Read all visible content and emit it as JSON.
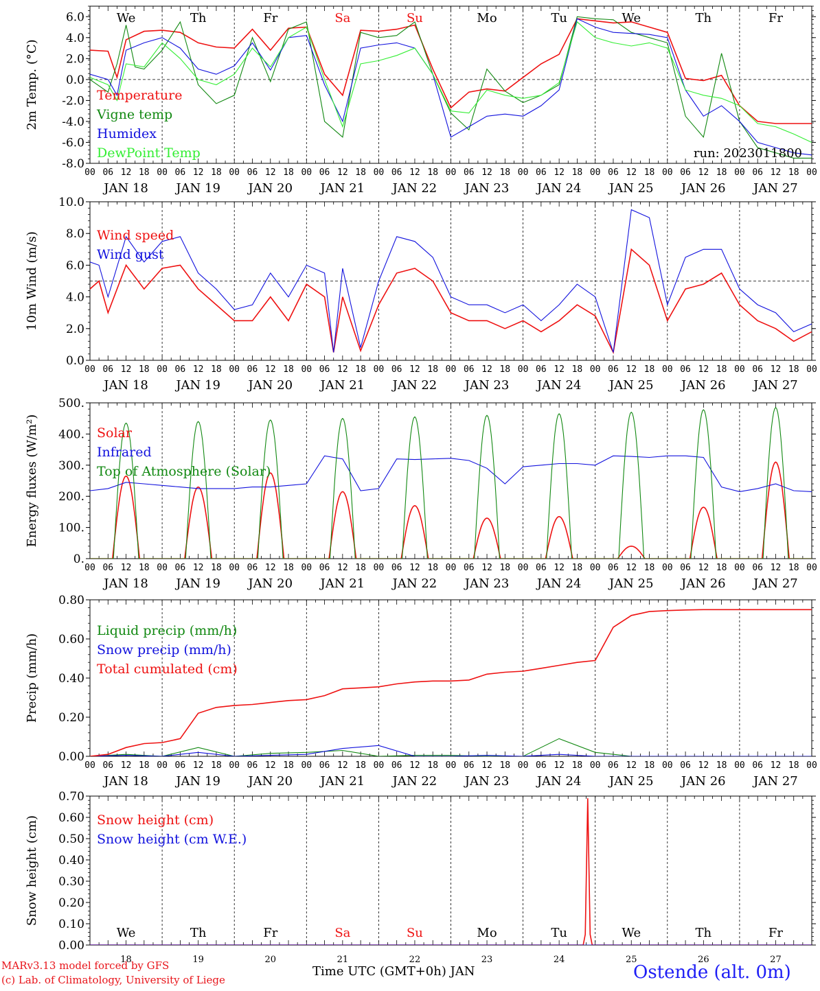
{
  "days_of_week": [
    "We",
    "Th",
    "Fr",
    "Sa",
    "Su",
    "Mo",
    "Tu",
    "We",
    "Th",
    "Fr"
  ],
  "weekend_days": [
    "Sa",
    "Su"
  ],
  "date_labels": [
    "JAN 18",
    "JAN 19",
    "JAN 20",
    "JAN 21",
    "JAN 22",
    "JAN 23",
    "JAN 24",
    "JAN 25",
    "JAN 26",
    "JAN 27"
  ],
  "day_numbers": [
    "18",
    "19",
    "20",
    "21",
    "22",
    "23",
    "24",
    "25",
    "26",
    "27"
  ],
  "hour_ticks": [
    "00",
    "06",
    "12",
    "18"
  ],
  "final_hour_tick": "00",
  "colors": {
    "red": "#ee1111",
    "green": "#118811",
    "blue": "#1111dd",
    "lightgreen": "#33ee33"
  },
  "footer": {
    "credit_line1": "MARv3.13 model forced by GFS",
    "credit_line2": "(c) Lab. of Climatology, University of Liege",
    "x_axis_title": "Time UTC (GMT+0h) JAN",
    "station": "Ostende (alt. 0m)"
  },
  "chart_data": [
    {
      "type": "line",
      "ylabel": "2m Temp. (°C)",
      "ylim": [
        -8,
        7
      ],
      "yticks": [
        "6.0",
        "4.0",
        "2.0",
        "0.0",
        "-2.0",
        "-4.0",
        "-6.0",
        "-8.0"
      ],
      "reference_line": 0,
      "run_label": "run: 2023011800",
      "x_unit": "hours since 18 JAN 00 UTC",
      "series": [
        {
          "name": "Temperature",
          "color": "red",
          "x": [
            0,
            6,
            9,
            12,
            18,
            24,
            30,
            36,
            42,
            48,
            54,
            60,
            66,
            72,
            78,
            84,
            90,
            96,
            102,
            108,
            114,
            120,
            126,
            132,
            138,
            144,
            150,
            156,
            162,
            168,
            174,
            180,
            186,
            192,
            198,
            204,
            210,
            216,
            222,
            228,
            234,
            240
          ],
          "y": [
            2.8,
            2.7,
            0.2,
            3.8,
            4.6,
            4.7,
            4.5,
            3.5,
            3.1,
            3.0,
            4.8,
            2.8,
            4.9,
            5.0,
            0.5,
            -1.5,
            4.7,
            4.6,
            4.8,
            5.2,
            1.0,
            -2.7,
            -1.2,
            -0.9,
            -1.1,
            0.2,
            1.5,
            2.4,
            5.8,
            5.6,
            5.4,
            5.5,
            5.0,
            4.5,
            0.1,
            -0.1,
            0.4,
            -2.5,
            -4.0,
            -4.2,
            -4.2,
            -4.2
          ]
        },
        {
          "name": "Vigne temp",
          "color": "green",
          "x": [
            0,
            6,
            9,
            12,
            15,
            18,
            24,
            30,
            36,
            42,
            48,
            54,
            60,
            66,
            72,
            78,
            84,
            90,
            96,
            102,
            108,
            114,
            120,
            126,
            132,
            138,
            144,
            150,
            156,
            162,
            168,
            174,
            180,
            186,
            192,
            198,
            204,
            210,
            216,
            222,
            228,
            234,
            240
          ],
          "y": [
            0.0,
            -1.2,
            1.5,
            5.2,
            1.2,
            1.0,
            2.8,
            5.5,
            -0.5,
            -2.3,
            -1.5,
            4.0,
            -0.2,
            4.8,
            5.5,
            -4.0,
            -5.5,
            4.5,
            4.0,
            4.2,
            5.5,
            0.5,
            -3.2,
            -4.8,
            1.0,
            -1.1,
            -2.2,
            -1.5,
            -0.5,
            6.0,
            5.8,
            5.7,
            4.5,
            4.0,
            3.5,
            -3.5,
            -5.5,
            2.5,
            -4.0,
            -6.5,
            -7.0,
            -7.5,
            -7.5
          ]
        },
        {
          "name": "Humidex",
          "color": "blue",
          "x": [
            0,
            6,
            9,
            12,
            18,
            24,
            30,
            36,
            42,
            48,
            54,
            60,
            66,
            72,
            78,
            84,
            90,
            96,
            102,
            108,
            114,
            120,
            126,
            132,
            138,
            144,
            150,
            156,
            162,
            168,
            174,
            180,
            186,
            192,
            198,
            204,
            210,
            216,
            222,
            228,
            234,
            240
          ],
          "y": [
            0.5,
            0.0,
            -1.5,
            2.8,
            3.5,
            4.0,
            3.0,
            1.0,
            0.5,
            1.3,
            3.5,
            0.9,
            4.0,
            4.2,
            -0.5,
            -4.0,
            3.0,
            3.3,
            3.5,
            3.0,
            0.5,
            -5.5,
            -4.5,
            -3.5,
            -3.3,
            -3.5,
            -2.5,
            -1.0,
            5.8,
            5.0,
            4.5,
            4.4,
            4.3,
            4.0,
            -1.0,
            -3.5,
            -2.5,
            -4.0,
            -6.0,
            -6.5,
            -7.0,
            -7.2
          ]
        },
        {
          "name": "DewPoint Temp",
          "color": "lightgreen",
          "x": [
            0,
            6,
            9,
            12,
            18,
            24,
            30,
            36,
            42,
            48,
            54,
            60,
            66,
            72,
            78,
            84,
            90,
            96,
            102,
            108,
            114,
            120,
            126,
            132,
            138,
            144,
            150,
            156,
            162,
            168,
            174,
            180,
            186,
            192,
            198,
            204,
            210,
            216,
            222,
            228,
            234,
            240
          ],
          "y": [
            0.2,
            -0.5,
            -2.0,
            1.5,
            1.2,
            3.5,
            2.0,
            0.0,
            -0.5,
            0.5,
            3.0,
            1.2,
            4.0,
            5.0,
            0.0,
            -4.5,
            1.5,
            1.8,
            2.3,
            3.0,
            0.5,
            -3.0,
            -3.2,
            -1.0,
            -1.5,
            -1.8,
            -1.5,
            -0.3,
            5.5,
            4.0,
            3.5,
            3.2,
            3.5,
            3.0,
            -1.0,
            -1.5,
            -1.8,
            -2.5,
            -4.2,
            -4.5,
            -5.2,
            -6.0
          ]
        }
      ]
    },
    {
      "type": "line",
      "ylabel": "10m Wind (m/s)",
      "ylim": [
        0,
        10
      ],
      "yticks": [
        "10.0",
        "8.0",
        "6.0",
        "4.0",
        "2.0",
        "0.0"
      ],
      "reference_line": 5,
      "x_unit": "hours since 18 JAN 00 UTC",
      "series": [
        {
          "name": "Wind speed",
          "color": "red",
          "x": [
            0,
            3,
            6,
            12,
            18,
            24,
            30,
            36,
            42,
            48,
            54,
            60,
            66,
            72,
            78,
            81,
            84,
            90,
            96,
            102,
            108,
            114,
            120,
            126,
            132,
            138,
            144,
            150,
            156,
            162,
            168,
            174,
            180,
            186,
            192,
            198,
            204,
            210,
            216,
            222,
            228,
            234,
            240
          ],
          "y": [
            4.5,
            5.0,
            3.0,
            6.0,
            4.5,
            5.8,
            6.0,
            4.5,
            3.5,
            2.5,
            2.5,
            4.0,
            2.5,
            4.8,
            4.0,
            0.5,
            4.0,
            0.6,
            3.5,
            5.5,
            5.8,
            5.0,
            3.0,
            2.5,
            2.5,
            2.0,
            2.5,
            1.8,
            2.5,
            3.5,
            2.8,
            0.5,
            7.0,
            6.0,
            2.5,
            4.5,
            4.8,
            5.5,
            3.5,
            2.5,
            2.0,
            1.2,
            1.8
          ]
        },
        {
          "name": "Wind gust",
          "color": "blue",
          "x": [
            0,
            3,
            6,
            12,
            18,
            24,
            30,
            36,
            42,
            48,
            54,
            60,
            66,
            72,
            78,
            81,
            84,
            90,
            96,
            102,
            108,
            114,
            120,
            126,
            132,
            138,
            144,
            150,
            156,
            162,
            168,
            174,
            180,
            186,
            192,
            198,
            204,
            210,
            216,
            222,
            228,
            234,
            240
          ],
          "y": [
            6.2,
            6.0,
            4.0,
            7.8,
            6.2,
            7.5,
            7.8,
            5.5,
            4.5,
            3.2,
            3.5,
            5.5,
            4.0,
            6.0,
            5.5,
            0.5,
            5.8,
            0.8,
            5.0,
            7.8,
            7.5,
            6.5,
            4.0,
            3.5,
            3.5,
            3.0,
            3.5,
            2.5,
            3.5,
            4.8,
            4.0,
            0.5,
            9.5,
            9.0,
            3.5,
            6.5,
            7.0,
            7.0,
            4.5,
            3.5,
            3.0,
            1.8,
            2.3
          ]
        }
      ]
    },
    {
      "type": "line",
      "ylabel": "Energy fluxes (W/m²)",
      "ylim": [
        0,
        500
      ],
      "yticks": [
        "500.",
        "400.",
        "300.",
        "200.",
        "100.",
        "0."
      ],
      "x_unit": "hours since 18 JAN 00 UTC",
      "series": [
        {
          "name": "Solar",
          "color": "red",
          "peak_hour": 12,
          "half_width_hours": 4.5,
          "day_peaks": [
            265,
            230,
            275,
            215,
            170,
            130,
            135,
            40,
            165,
            310
          ]
        },
        {
          "name": "Infrared",
          "color": "blue",
          "x": [
            0,
            6,
            12,
            18,
            24,
            30,
            36,
            42,
            48,
            54,
            60,
            66,
            72,
            78,
            84,
            90,
            96,
            102,
            108,
            114,
            120,
            126,
            132,
            138,
            144,
            150,
            156,
            162,
            168,
            174,
            180,
            186,
            192,
            198,
            204,
            210,
            216,
            222,
            228,
            234,
            240
          ],
          "y": [
            218,
            225,
            245,
            240,
            235,
            230,
            225,
            225,
            225,
            230,
            230,
            235,
            240,
            330,
            320,
            218,
            225,
            320,
            318,
            320,
            322,
            315,
            290,
            240,
            295,
            300,
            305,
            305,
            300,
            330,
            328,
            325,
            330,
            330,
            325,
            230,
            215,
            225,
            240,
            218,
            215
          ]
        },
        {
          "name": "Top of Atmosphere (Solar)",
          "color": "green",
          "peak_hour": 12,
          "half_width_hours": 4.2,
          "day_peaks": [
            435,
            440,
            445,
            450,
            455,
            460,
            465,
            470,
            478,
            485
          ]
        }
      ]
    },
    {
      "type": "line",
      "ylabel": "Precip (mm/h)",
      "ylim": [
        0,
        0.8
      ],
      "yticks": [
        "0.80",
        "0.60",
        "0.40",
        "0.20",
        "0.00"
      ],
      "x_unit": "hours since 18 JAN 00 UTC",
      "series": [
        {
          "name": "Liquid precip (mm/h)",
          "color": "green",
          "x": [
            0,
            12,
            24,
            36,
            48,
            60,
            72,
            84,
            96,
            108,
            120,
            132,
            144,
            156,
            168,
            180,
            192,
            204,
            216,
            228,
            240
          ],
          "y": [
            0.0,
            0.01,
            0.0,
            0.045,
            0.0,
            0.015,
            0.02,
            0.03,
            0.0,
            0.005,
            0.005,
            0.0,
            0.0,
            0.09,
            0.02,
            0.0,
            0.0,
            0.0,
            0.0,
            0.0,
            0.0
          ]
        },
        {
          "name": "Snow precip (mm/h)",
          "color": "blue",
          "x": [
            0,
            12,
            24,
            36,
            48,
            60,
            72,
            84,
            96,
            108,
            120,
            132,
            144,
            156,
            168,
            180,
            192,
            204,
            216,
            228,
            240
          ],
          "y": [
            0.0,
            0.005,
            0.0,
            0.02,
            0.0,
            0.005,
            0.01,
            0.04,
            0.055,
            0.0,
            0.0,
            0.005,
            0.0,
            0.01,
            0.0,
            0.0,
            0.0,
            0.0,
            0.0,
            0.0,
            0.0
          ]
        },
        {
          "name": "Total cumulated (cm)",
          "color": "red",
          "x": [
            0,
            6,
            12,
            18,
            24,
            30,
            36,
            42,
            48,
            54,
            60,
            66,
            72,
            78,
            84,
            90,
            96,
            102,
            108,
            114,
            120,
            126,
            132,
            138,
            144,
            150,
            156,
            162,
            168,
            174,
            180,
            186,
            192,
            198,
            204,
            210,
            216,
            222,
            228,
            234,
            240
          ],
          "y": [
            0.0,
            0.01,
            0.045,
            0.065,
            0.07,
            0.09,
            0.22,
            0.25,
            0.26,
            0.265,
            0.275,
            0.285,
            0.29,
            0.31,
            0.345,
            0.35,
            0.355,
            0.37,
            0.38,
            0.385,
            0.385,
            0.39,
            0.42,
            0.43,
            0.435,
            0.45,
            0.465,
            0.48,
            0.49,
            0.66,
            0.72,
            0.74,
            0.745,
            0.748,
            0.75,
            0.75,
            0.75,
            0.75,
            0.75,
            0.75,
            0.75
          ]
        }
      ]
    },
    {
      "type": "line",
      "ylabel": "Snow height (cm)",
      "ylim": [
        0,
        0.7
      ],
      "yticks": [
        "0.70",
        "0.60",
        "0.50",
        "0.40",
        "0.30",
        "0.20",
        "0.10",
        "0.00"
      ],
      "x_unit": "hours since 18 JAN 00 UTC",
      "series": [
        {
          "name": "Snow height (cm)",
          "color": "red",
          "x": [
            0,
            164,
            164.7,
            165.5,
            166.3,
            167,
            240
          ],
          "y": [
            0,
            0,
            0.05,
            0.69,
            0.05,
            0,
            0
          ]
        },
        {
          "name": "Snow height (cm W.E.)",
          "color": "blue",
          "x": [
            0,
            240
          ],
          "y": [
            0,
            0
          ]
        }
      ]
    }
  ]
}
